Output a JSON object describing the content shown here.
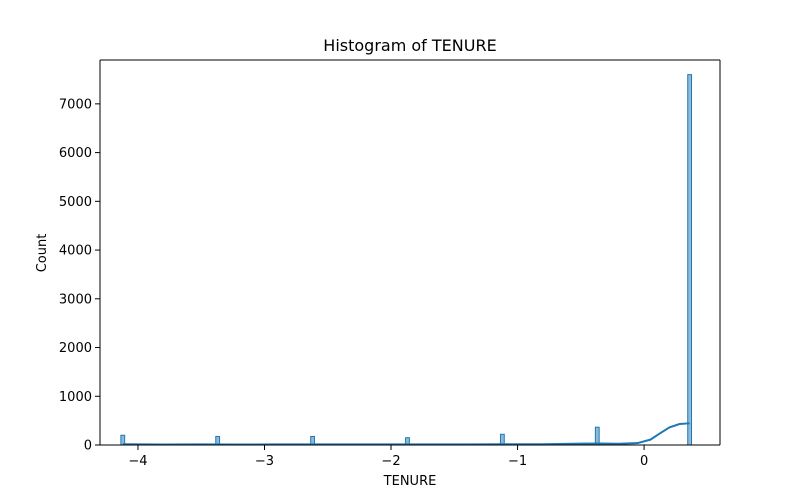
{
  "chart_data": {
    "type": "bar",
    "title": "Histogram of TENURE",
    "xlabel": "TENURE",
    "ylabel": "Count",
    "xlim": [
      -4.3,
      0.6
    ],
    "ylim": [
      0,
      7900
    ],
    "xticks": [
      -4,
      -3,
      -2,
      -1,
      0
    ],
    "xtick_labels": [
      "−4",
      "−3",
      "−2",
      "−1",
      "0"
    ],
    "yticks": [
      0,
      1000,
      2000,
      3000,
      4000,
      5000,
      6000,
      7000
    ],
    "ytick_labels": [
      "0",
      "1000",
      "2000",
      "3000",
      "4000",
      "5000",
      "6000",
      "7000"
    ],
    "bin_width": 0.03,
    "bins": [
      {
        "x": -4.12,
        "count": 200
      },
      {
        "x": -3.37,
        "count": 175
      },
      {
        "x": -2.62,
        "count": 175
      },
      {
        "x": -1.87,
        "count": 150
      },
      {
        "x": -1.12,
        "count": 220
      },
      {
        "x": -0.37,
        "count": 365
      },
      {
        "x": 0.36,
        "count": 7600
      }
    ],
    "kde": {
      "x": [
        -4.12,
        -3.8,
        -3.5,
        -3.2,
        -2.9,
        -2.6,
        -2.3,
        -2.0,
        -1.7,
        -1.4,
        -1.1,
        -0.8,
        -0.5,
        -0.35,
        -0.2,
        -0.05,
        0.05,
        0.12,
        0.2,
        0.28,
        0.36
      ],
      "y": [
        15,
        10,
        12,
        10,
        12,
        14,
        12,
        12,
        13,
        12,
        16,
        16,
        28,
        30,
        25,
        40,
        110,
        230,
        360,
        430,
        445
      ]
    },
    "grid": false,
    "legend": false
  }
}
